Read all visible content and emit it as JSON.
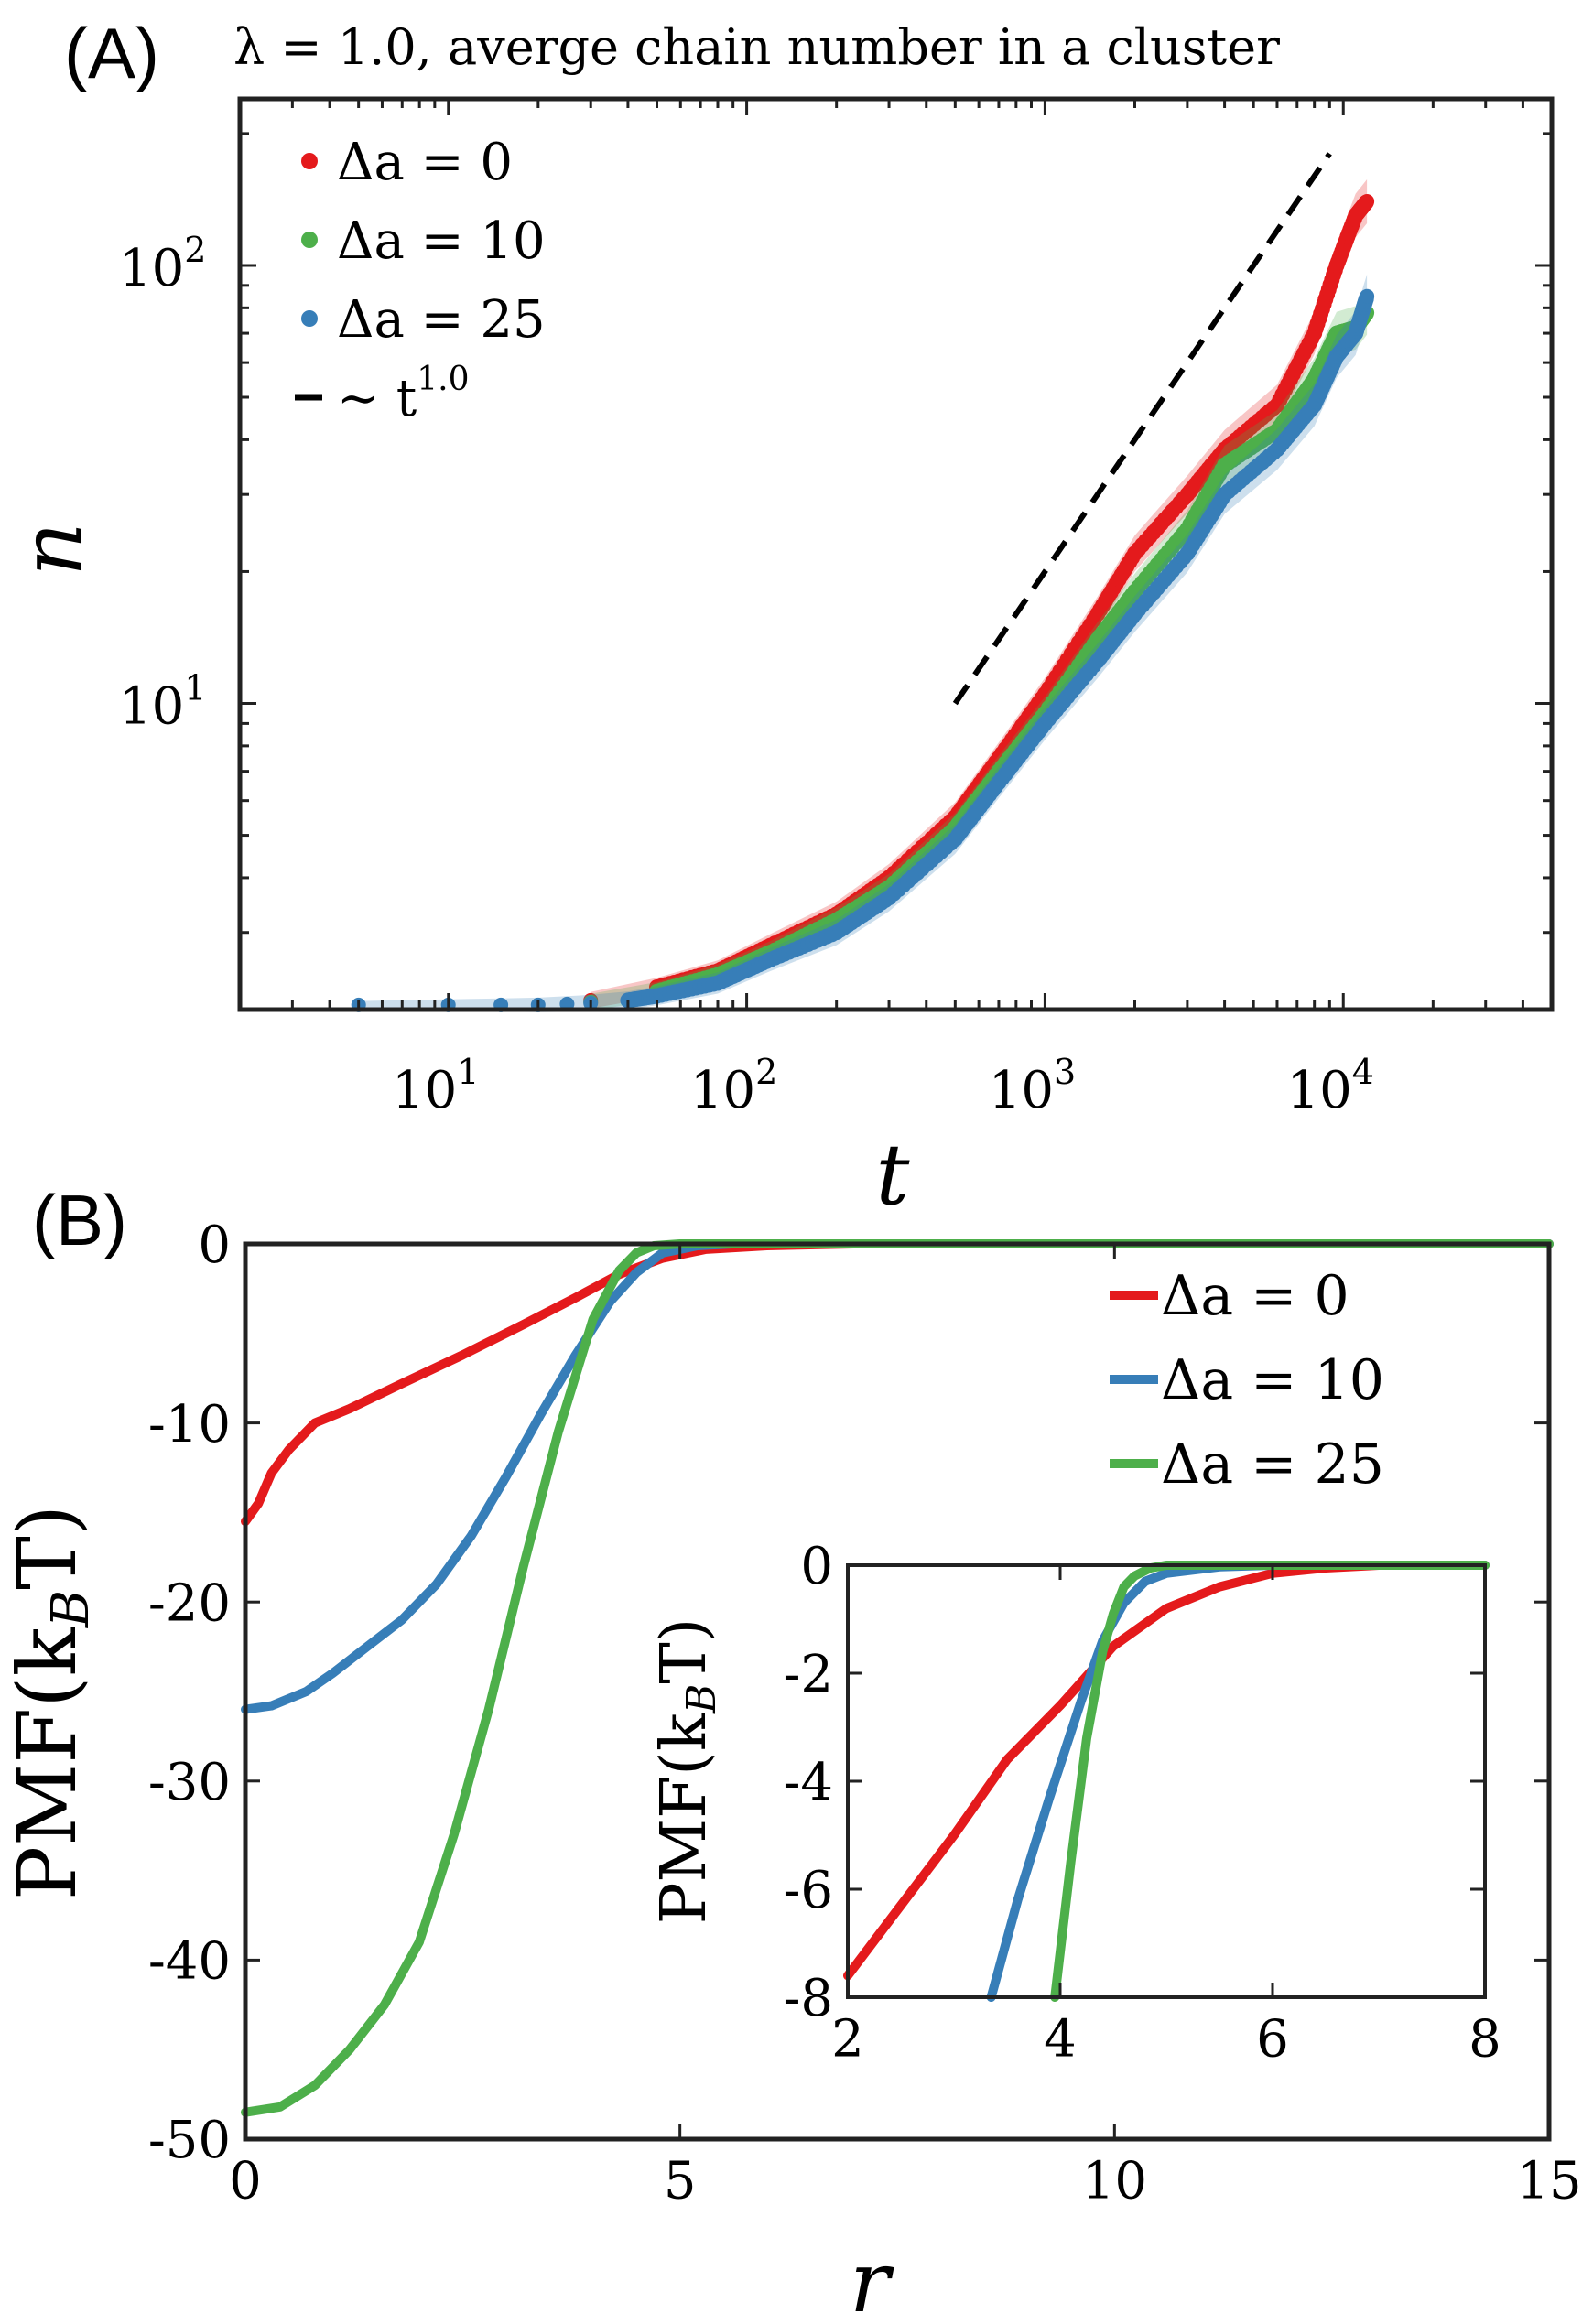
{
  "colors": {
    "red": "#e41a1c",
    "green": "#4daf4a",
    "blue": "#377eb8",
    "black": "#000000",
    "axis": "#222222"
  },
  "chart_data": [
    {
      "panel_label": "(A)",
      "type": "scatter",
      "scale": "log-log",
      "title": "λ = 1.0, averge chain number in a cluster",
      "xlabel": "t",
      "ylabel": "n",
      "xlim": [
        2,
        50000
      ],
      "ylim": [
        2,
        240
      ],
      "x_ticks": [
        10,
        100,
        1000,
        10000
      ],
      "x_tick_labels": [
        {
          "base": "10",
          "exp": "1"
        },
        {
          "base": "10",
          "exp": "2"
        },
        {
          "base": "10",
          "exp": "3"
        },
        {
          "base": "10",
          "exp": "4"
        }
      ],
      "y_ticks": [
        10,
        100
      ],
      "y_tick_labels": [
        {
          "base": "10",
          "exp": "1"
        },
        {
          "base": "10",
          "exp": "2"
        }
      ],
      "series": [
        {
          "name": "Δa = 0",
          "color_key": "red",
          "x": [
            30,
            50,
            80,
            120,
            200,
            300,
            500,
            700,
            1000,
            1500,
            2000,
            3000,
            4000,
            6000,
            8000,
            9500,
            11000,
            12000
          ],
          "y": [
            2.1,
            2.25,
            2.45,
            2.8,
            3.3,
            4.0,
            5.5,
            7.5,
            10.5,
            16,
            22,
            30,
            38,
            48,
            70,
            100,
            130,
            140
          ]
        },
        {
          "name": "Δa = 10",
          "color_key": "green",
          "x": [
            30,
            50,
            80,
            120,
            200,
            300,
            500,
            700,
            1000,
            1500,
            2000,
            3000,
            4000,
            6000,
            8000,
            9500,
            11000,
            12000
          ],
          "y": [
            2.08,
            2.2,
            2.4,
            2.7,
            3.2,
            3.8,
            5.2,
            7.0,
            9.5,
            14,
            18,
            25,
            35,
            42,
            55,
            70,
            72,
            78
          ]
        },
        {
          "name": "Δa = 25",
          "color_key": "blue",
          "x": [
            5,
            10,
            15,
            20,
            25,
            30,
            40,
            50,
            80,
            120,
            200,
            300,
            500,
            700,
            1000,
            1500,
            2000,
            3000,
            4000,
            6000,
            8000,
            9500,
            11000,
            12000
          ],
          "y": [
            2.05,
            2.05,
            2.05,
            2.05,
            2.06,
            2.07,
            2.1,
            2.15,
            2.3,
            2.6,
            3.0,
            3.6,
            4.9,
            6.6,
            9.0,
            12.5,
            16,
            22,
            30,
            38,
            48,
            62,
            70,
            85
          ]
        }
      ],
      "reference_line": {
        "name": "~ t^1.0",
        "legend_text": "∼ t",
        "legend_exp": "1.0",
        "style": "dashed",
        "color_key": "black",
        "x": [
          500,
          9000
        ],
        "y": [
          10,
          180
        ]
      },
      "legend": {
        "position": "top-left",
        "entries": [
          {
            "text": "Δa = 0",
            "color_key": "red",
            "marker": "dot"
          },
          {
            "text": "Δa = 10",
            "color_key": "green",
            "marker": "dot"
          },
          {
            "text": "Δa = 25",
            "color_key": "blue",
            "marker": "dot"
          },
          {
            "text": "∼ t",
            "sup": "1.0",
            "color_key": "black",
            "marker": "dash"
          }
        ]
      }
    },
    {
      "panel_label": "(B)",
      "type": "line",
      "xlabel": "r",
      "ylabel": "PMF(kBT)",
      "ylabel_main": "PMF(k",
      "ylabel_sub": "B",
      "ylabel_tail": "T)",
      "xlim": [
        0,
        15
      ],
      "ylim": [
        -50,
        0
      ],
      "x_ticks": [
        0,
        5,
        10,
        15
      ],
      "x_tick_labels": [
        "0",
        "5",
        "10",
        "15"
      ],
      "y_ticks": [
        0,
        -10,
        -20,
        -30,
        -40,
        -50
      ],
      "y_tick_labels": [
        "0",
        "-10",
        "-20",
        "-30",
        "-40",
        "-50"
      ],
      "series": [
        {
          "name": "Δa = 0",
          "color_key": "red",
          "x": [
            0,
            0.15,
            0.3,
            0.5,
            0.8,
            1.2,
            1.8,
            2.5,
            3.2,
            3.8,
            4.3,
            4.8,
            5.3,
            6.0,
            7.0,
            8.0,
            10,
            12,
            15
          ],
          "y": [
            -15.5,
            -14.5,
            -12.8,
            -11.5,
            -10.0,
            -9.2,
            -7.8,
            -6.2,
            -4.5,
            -3.0,
            -1.7,
            -0.8,
            -0.3,
            -0.1,
            0,
            0,
            0,
            0,
            0
          ]
        },
        {
          "name": "Δa = 10",
          "color_key": "blue",
          "x": [
            0,
            0.3,
            0.7,
            1.0,
            1.4,
            1.8,
            2.2,
            2.6,
            3.0,
            3.4,
            3.8,
            4.2,
            4.5,
            4.8,
            5.2,
            5.6,
            6.0,
            8.0,
            10,
            12,
            15
          ],
          "y": [
            -26,
            -25.8,
            -25,
            -24,
            -22.5,
            -21,
            -19,
            -16.3,
            -13,
            -9.5,
            -6.2,
            -3.2,
            -1.6,
            -0.5,
            -0.1,
            0,
            0,
            0,
            0,
            0,
            0
          ]
        },
        {
          "name": "Δa = 25",
          "color_key": "green",
          "x": [
            0,
            0.4,
            0.8,
            1.2,
            1.6,
            2.0,
            2.4,
            2.8,
            3.2,
            3.6,
            4.0,
            4.3,
            4.5,
            4.7,
            5.0,
            5.5,
            6.0,
            8.0,
            10,
            12,
            15
          ],
          "y": [
            -48.5,
            -48.2,
            -47,
            -45,
            -42.5,
            -39,
            -33,
            -26,
            -18,
            -10.5,
            -4.2,
            -1.5,
            -0.5,
            -0.1,
            0,
            0,
            0,
            0,
            0,
            0,
            0
          ]
        }
      ],
      "legend": {
        "position": "top-right",
        "entries": [
          {
            "text": "Δa = 0",
            "color_key": "red"
          },
          {
            "text": "Δa = 10",
            "color_key": "blue"
          },
          {
            "text": "Δa = 25",
            "color_key": "green"
          }
        ]
      },
      "inset": {
        "type": "line",
        "position": "lower-right",
        "ylabel_main": "PMF(k",
        "ylabel_sub": "B",
        "ylabel_tail": "T)",
        "xlim": [
          2,
          8
        ],
        "ylim": [
          -8,
          0
        ],
        "x_ticks": [
          2,
          4,
          6,
          8
        ],
        "x_tick_labels": [
          "2",
          "4",
          "6",
          "8"
        ],
        "y_ticks": [
          0,
          -2,
          -4,
          -6,
          -8
        ],
        "y_tick_labels": [
          "0",
          "-2",
          "-4",
          "-6",
          "-8"
        ],
        "series": [
          {
            "name": "Δa = 0",
            "color_key": "red",
            "x": [
              2.0,
              2.5,
              3.0,
              3.5,
              4.0,
              4.5,
              5.0,
              5.5,
              6.0,
              6.5,
              7.0,
              8.0
            ],
            "y": [
              -7.6,
              -6.3,
              -5.0,
              -3.6,
              -2.6,
              -1.5,
              -0.8,
              -0.4,
              -0.15,
              -0.05,
              0,
              0
            ]
          },
          {
            "name": "Δa = 10",
            "color_key": "blue",
            "x": [
              3.35,
              3.6,
              3.9,
              4.2,
              4.4,
              4.6,
              4.8,
              5.0,
              5.5,
              6.0,
              8.0
            ],
            "y": [
              -8.0,
              -6.2,
              -4.3,
              -2.5,
              -1.4,
              -0.7,
              -0.3,
              -0.15,
              -0.03,
              0,
              0
            ]
          },
          {
            "name": "Δa = 25",
            "color_key": "green",
            "x": [
              3.95,
              4.1,
              4.25,
              4.4,
              4.5,
              4.6,
              4.7,
              4.85,
              5.0,
              5.5,
              8.0
            ],
            "y": [
              -8.0,
              -5.5,
              -3.2,
              -1.6,
              -0.9,
              -0.4,
              -0.2,
              -0.05,
              0,
              0,
              0
            ]
          }
        ]
      }
    }
  ]
}
